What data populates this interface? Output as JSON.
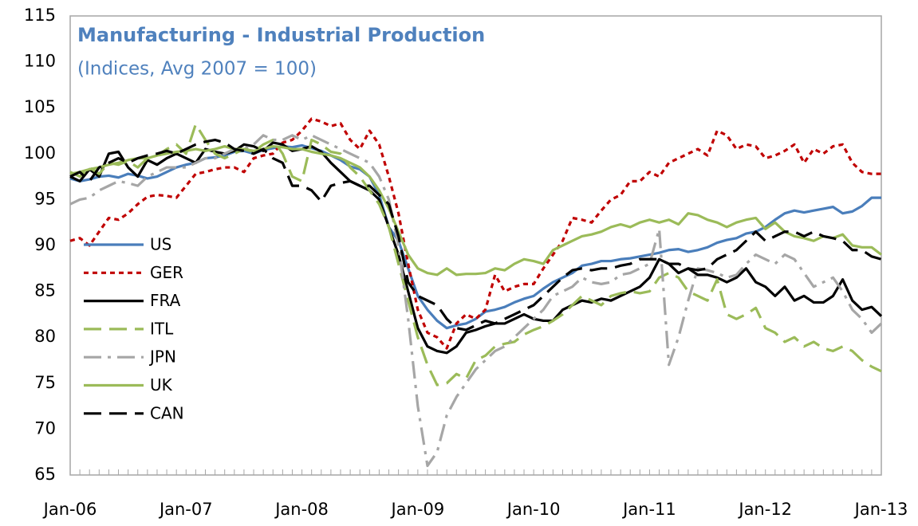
{
  "chart_data": {
    "type": "line",
    "title": "Manufacturing - Industrial Production",
    "subtitle": "(Indices, Avg 2007 = 100)",
    "categories": [
      "Jan-06",
      null,
      null,
      null,
      null,
      null,
      null,
      null,
      null,
      null,
      null,
      null,
      "Jan-07",
      null,
      null,
      null,
      null,
      null,
      null,
      null,
      null,
      null,
      null,
      null,
      "Jan-08",
      null,
      null,
      null,
      null,
      null,
      null,
      null,
      null,
      null,
      null,
      null,
      "Jan-09",
      null,
      null,
      null,
      null,
      null,
      null,
      null,
      null,
      null,
      null,
      null,
      "Jan-10",
      null,
      null,
      null,
      null,
      null,
      null,
      null,
      null,
      null,
      null,
      null,
      "Jan-11",
      null,
      null,
      null,
      null,
      null,
      null,
      null,
      null,
      null,
      null,
      null,
      "Jan-12",
      null,
      null,
      null,
      null,
      null,
      null,
      null,
      null,
      null,
      null,
      null,
      "Jan-13"
    ],
    "ylim": [
      65,
      115
    ],
    "yticks": [
      65,
      70,
      75,
      80,
      85,
      90,
      95,
      100,
      105,
      110,
      115
    ],
    "grid": false,
    "legend": "left",
    "series": [
      {
        "name": "US",
        "color": "#4a7ebb",
        "dash": "solid",
        "values": [
          97.3,
          97.0,
          97.2,
          97.5,
          97.6,
          97.4,
          97.8,
          97.6,
          97.3,
          97.5,
          98.0,
          98.5,
          98.8,
          99.0,
          99.5,
          99.6,
          99.8,
          100.2,
          100.3,
          100.0,
          100.4,
          100.6,
          100.8,
          100.7,
          100.9,
          100.6,
          100.3,
          99.8,
          99.3,
          98.6,
          98.3,
          97.5,
          95.5,
          92.0,
          90.5,
          87.5,
          84.5,
          83.0,
          81.8,
          81.0,
          81.3,
          81.5,
          82.0,
          82.8,
          83.0,
          83.3,
          83.8,
          84.2,
          84.5,
          85.3,
          86.0,
          86.5,
          87.0,
          87.8,
          88.0,
          88.3,
          88.3,
          88.5,
          88.6,
          88.8,
          89.0,
          89.2,
          89.5,
          89.6,
          89.3,
          89.5,
          89.8,
          90.3,
          90.6,
          90.8,
          91.3,
          91.5,
          92.0,
          92.8,
          93.5,
          93.8,
          93.6,
          93.8,
          94.0,
          94.2,
          93.5,
          93.7,
          94.3,
          95.2,
          95.2
        ]
      },
      {
        "name": "GER",
        "color": "#c00000",
        "dash": "dotted",
        "values": [
          90.5,
          90.8,
          90.0,
          91.5,
          93.0,
          92.8,
          93.5,
          94.5,
          95.3,
          95.5,
          95.4,
          95.2,
          96.5,
          97.8,
          98.0,
          98.3,
          98.5,
          98.5,
          98.0,
          99.5,
          99.8,
          100.0,
          101.2,
          101.5,
          102.5,
          103.8,
          103.5,
          103.0,
          103.3,
          101.5,
          100.5,
          102.5,
          101.0,
          97.5,
          93.5,
          88.0,
          83.0,
          80.5,
          80.0,
          78.8,
          81.5,
          82.5,
          82.0,
          83.0,
          86.8,
          85.0,
          85.5,
          85.8,
          85.8,
          87.5,
          89.0,
          90.5,
          93.0,
          92.8,
          92.5,
          93.8,
          95.0,
          95.5,
          97.0,
          97.0,
          98.0,
          97.5,
          99.0,
          99.5,
          100.0,
          100.5,
          99.8,
          102.5,
          102.0,
          100.5,
          101.0,
          100.8,
          99.5,
          99.8,
          100.3,
          101.0,
          99.0,
          100.5,
          100.0,
          100.8,
          101.0,
          99.0,
          98.0,
          97.8,
          97.8
        ]
      },
      {
        "name": "FRA",
        "color": "#000000",
        "dash": "solid",
        "values": [
          97.5,
          97.0,
          98.3,
          97.5,
          100.0,
          100.2,
          98.5,
          97.5,
          99.3,
          98.8,
          99.5,
          100.0,
          99.5,
          99.0,
          100.5,
          100.2,
          100.0,
          100.3,
          101.0,
          100.8,
          100.3,
          101.2,
          101.0,
          100.3,
          100.5,
          100.8,
          100.2,
          99.0,
          98.0,
          97.0,
          96.5,
          96.0,
          95.0,
          92.0,
          89.0,
          85.0,
          81.0,
          79.0,
          78.5,
          78.3,
          79.0,
          80.5,
          80.8,
          81.2,
          81.5,
          81.5,
          82.0,
          82.5,
          82.0,
          81.8,
          81.8,
          83.0,
          83.5,
          84.0,
          83.8,
          84.2,
          84.0,
          84.5,
          85.0,
          85.5,
          86.5,
          88.5,
          88.0,
          87.0,
          87.5,
          86.8,
          86.8,
          86.5,
          86.0,
          86.5,
          87.5,
          86.0,
          85.5,
          84.5,
          85.5,
          84.0,
          84.5,
          83.8,
          83.8,
          84.5,
          86.3,
          84.0,
          83.0,
          83.3,
          82.3
        ]
      },
      {
        "name": "ITL",
        "color": "#9bbb59",
        "dash": "dashed",
        "values": [
          98.0,
          97.5,
          98.5,
          97.8,
          99.0,
          98.8,
          99.2,
          98.5,
          99.5,
          99.8,
          100.5,
          101.0,
          100.0,
          103.2,
          101.5,
          100.0,
          99.5,
          100.0,
          100.5,
          100.2,
          101.0,
          101.5,
          100.0,
          97.5,
          97.0,
          101.5,
          101.0,
          100.2,
          100.0,
          98.5,
          97.5,
          96.0,
          94.5,
          92.0,
          88.0,
          84.0,
          80.0,
          77.0,
          74.8,
          75.0,
          76.0,
          75.5,
          77.5,
          78.0,
          79.0,
          79.3,
          79.5,
          80.3,
          80.8,
          81.2,
          81.8,
          82.5,
          83.5,
          84.5,
          84.0,
          83.5,
          84.5,
          84.8,
          85.0,
          84.8,
          85.0,
          86.5,
          87.0,
          86.5,
          85.0,
          84.5,
          84.0,
          86.3,
          82.5,
          82.0,
          82.5,
          83.2,
          81.0,
          80.5,
          79.5,
          80.0,
          79.0,
          79.5,
          78.8,
          78.5,
          79.0,
          78.5,
          77.5,
          76.8,
          76.3
        ]
      },
      {
        "name": "JPN",
        "color": "#a6a6a6",
        "dash": "dashdot",
        "values": [
          94.5,
          95.0,
          95.2,
          96.0,
          96.5,
          97.0,
          96.8,
          96.5,
          97.5,
          98.0,
          98.5,
          98.5,
          98.5,
          99.0,
          99.5,
          99.5,
          100.0,
          100.5,
          100.5,
          101.0,
          102.0,
          101.5,
          101.5,
          102.0,
          101.5,
          102.0,
          101.5,
          101.0,
          100.5,
          100.0,
          99.5,
          99.0,
          97.5,
          95.0,
          90.0,
          82.0,
          72.5,
          66.0,
          67.5,
          71.5,
          73.5,
          75.0,
          76.5,
          77.5,
          78.5,
          79.0,
          80.0,
          81.0,
          82.0,
          83.0,
          84.5,
          85.0,
          85.5,
          86.5,
          86.0,
          85.8,
          86.0,
          86.8,
          87.0,
          87.5,
          88.0,
          91.8,
          77.0,
          80.0,
          84.0,
          87.5,
          87.3,
          87.0,
          86.5,
          86.8,
          88.0,
          89.0,
          88.5,
          88.0,
          89.0,
          88.5,
          87.0,
          85.5,
          86.0,
          86.5,
          85.0,
          83.0,
          82.0,
          80.5,
          81.5
        ]
      },
      {
        "name": "UK",
        "color": "#9bbb59",
        "dash": "solid",
        "values": [
          97.8,
          98.0,
          98.3,
          98.5,
          98.8,
          99.0,
          99.3,
          99.5,
          99.5,
          99.8,
          100.0,
          100.2,
          100.3,
          100.5,
          100.3,
          100.5,
          100.8,
          100.5,
          100.5,
          100.3,
          100.5,
          100.8,
          100.7,
          100.5,
          100.5,
          100.2,
          100.0,
          99.8,
          99.5,
          99.0,
          98.5,
          97.5,
          96.0,
          94.0,
          91.5,
          89.0,
          87.5,
          87.0,
          86.8,
          87.5,
          86.8,
          86.9,
          86.9,
          87.0,
          87.5,
          87.3,
          88.0,
          88.5,
          88.3,
          88.0,
          89.5,
          90.0,
          90.5,
          91.0,
          91.2,
          91.5,
          92.0,
          92.3,
          92.0,
          92.5,
          92.8,
          92.5,
          92.8,
          92.3,
          93.5,
          93.3,
          92.8,
          92.5,
          92.0,
          92.5,
          92.8,
          93.0,
          91.8,
          92.5,
          91.5,
          91.0,
          90.8,
          90.5,
          91.0,
          90.8,
          91.2,
          90.0,
          89.8,
          89.8,
          89.0
        ]
      },
      {
        "name": "CAN",
        "color": "#000000",
        "dash": "dashed",
        "values": [
          97.5,
          98.0,
          97.0,
          98.5,
          99.0,
          99.5,
          99.0,
          99.5,
          99.8,
          100.0,
          100.3,
          100.0,
          100.5,
          101.0,
          101.3,
          101.5,
          101.2,
          100.5,
          100.3,
          100.0,
          100.5,
          99.5,
          99.0,
          96.5,
          96.5,
          96.0,
          94.8,
          96.5,
          96.8,
          97.0,
          96.5,
          96.5,
          95.5,
          94.5,
          91.0,
          86.0,
          84.5,
          84.0,
          83.5,
          82.0,
          81.0,
          80.8,
          81.3,
          81.8,
          81.5,
          82.0,
          82.5,
          83.0,
          83.5,
          84.5,
          85.5,
          86.5,
          87.3,
          87.5,
          87.3,
          87.5,
          87.5,
          87.8,
          88.0,
          88.5,
          88.5,
          88.5,
          88.0,
          88.0,
          87.5,
          87.3,
          87.5,
          88.5,
          89.0,
          89.5,
          90.5,
          91.5,
          90.5,
          91.0,
          91.5,
          91.5,
          91.0,
          91.5,
          91.0,
          90.8,
          90.5,
          89.5,
          89.5,
          88.8,
          88.5
        ]
      }
    ]
  }
}
